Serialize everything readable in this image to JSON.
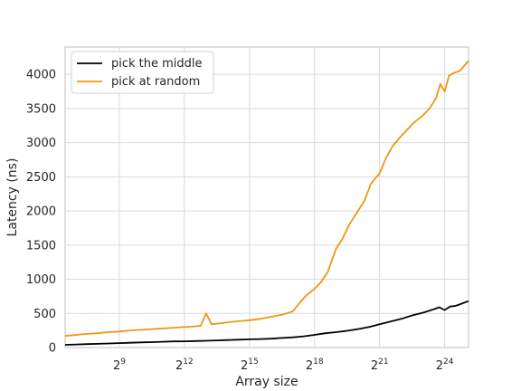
{
  "chart_data": {
    "type": "line",
    "xlabel": "Array size",
    "ylabel": "Latency (ns)",
    "x_scale": "log2",
    "xlim_exponent": [
      6.5,
      25.1
    ],
    "ylim": [
      0,
      4400
    ],
    "grid": true,
    "legend_position": "top-left",
    "x_ticks": [
      {
        "base": "2",
        "exp": "9",
        "value": 9
      },
      {
        "base": "2",
        "exp": "12",
        "value": 12
      },
      {
        "base": "2",
        "exp": "15",
        "value": 15
      },
      {
        "base": "2",
        "exp": "18",
        "value": 18
      },
      {
        "base": "2",
        "exp": "21",
        "value": 21
      },
      {
        "base": "2",
        "exp": "24",
        "value": 24
      }
    ],
    "y_ticks": [
      0,
      500,
      1000,
      1500,
      2000,
      2500,
      3000,
      3500,
      4000
    ],
    "series": [
      {
        "name": "pick the middle",
        "color": "#000000",
        "x_exponent": [
          6.5,
          7.0,
          7.5,
          8.0,
          8.5,
          9.0,
          9.5,
          10.0,
          10.5,
          11.0,
          11.5,
          12.0,
          12.5,
          13.0,
          13.5,
          14.0,
          14.5,
          15.0,
          15.5,
          16.0,
          16.5,
          17.0,
          17.5,
          18.0,
          18.5,
          19.0,
          19.5,
          20.0,
          20.5,
          21.0,
          21.5,
          22.0,
          22.5,
          23.0,
          23.5,
          23.75,
          24.0,
          24.25,
          24.5,
          25.1
        ],
        "values": [
          40,
          45,
          50,
          55,
          60,
          65,
          70,
          75,
          80,
          85,
          90,
          92,
          95,
          100,
          105,
          110,
          115,
          120,
          125,
          130,
          140,
          150,
          165,
          185,
          210,
          225,
          245,
          270,
          300,
          340,
          380,
          420,
          470,
          510,
          560,
          590,
          550,
          600,
          610,
          680
        ]
      },
      {
        "name": "pick at random",
        "color": "#f0960f",
        "x_exponent": [
          6.5,
          7.0,
          7.5,
          8.0,
          8.5,
          9.0,
          9.5,
          10.0,
          10.5,
          11.0,
          11.5,
          12.0,
          12.5,
          12.75,
          13.0,
          13.25,
          13.5,
          14.0,
          14.5,
          15.0,
          15.5,
          16.0,
          16.5,
          17.0,
          17.3,
          17.6,
          18.0,
          18.3,
          18.6,
          19.0,
          19.3,
          19.6,
          20.0,
          20.3,
          20.6,
          21.0,
          21.3,
          21.6,
          22.0,
          22.3,
          22.6,
          23.0,
          23.3,
          23.6,
          23.8,
          24.0,
          24.2,
          24.4,
          24.7,
          25.1
        ],
        "values": [
          170,
          185,
          200,
          210,
          225,
          235,
          250,
          260,
          270,
          280,
          290,
          300,
          310,
          320,
          500,
          340,
          350,
          370,
          385,
          400,
          420,
          450,
          480,
          530,
          650,
          760,
          860,
          960,
          1100,
          1450,
          1600,
          1800,
          2000,
          2150,
          2400,
          2550,
          2780,
          2950,
          3100,
          3200,
          3300,
          3400,
          3500,
          3650,
          3860,
          3750,
          3980,
          4020,
          4050,
          4200
        ]
      }
    ]
  }
}
